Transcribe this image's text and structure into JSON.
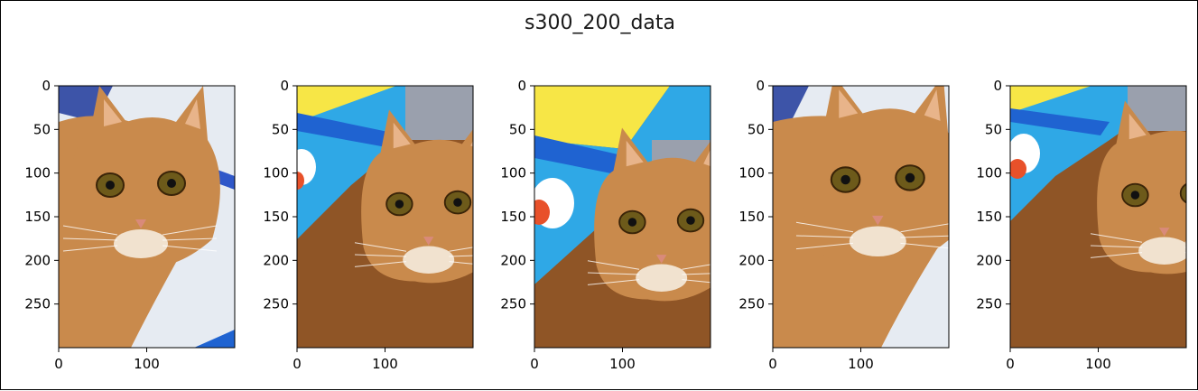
{
  "figure": {
    "title": "s300_200_data"
  },
  "chart_data": [
    {
      "type": "image",
      "panel": 1,
      "content": "cat photo crop",
      "xlim": [
        0,
        200
      ],
      "ylim": [
        300,
        0
      ],
      "xticks": [
        "0",
        "100"
      ],
      "yticks": [
        "0",
        "50",
        "100",
        "150",
        "200",
        "250"
      ]
    },
    {
      "type": "image",
      "panel": 2,
      "content": "cat photo crop",
      "xlim": [
        0,
        200
      ],
      "ylim": [
        300,
        0
      ],
      "xticks": [
        "0",
        "100"
      ],
      "yticks": [
        "0",
        "50",
        "100",
        "150",
        "200",
        "250"
      ]
    },
    {
      "type": "image",
      "panel": 3,
      "content": "cat photo crop",
      "xlim": [
        0,
        200
      ],
      "ylim": [
        300,
        0
      ],
      "xticks": [
        "0",
        "100"
      ],
      "yticks": [
        "0",
        "50",
        "100",
        "150",
        "200",
        "250"
      ]
    },
    {
      "type": "image",
      "panel": 4,
      "content": "cat photo crop",
      "xlim": [
        0,
        200
      ],
      "ylim": [
        300,
        0
      ],
      "xticks": [
        "0",
        "100"
      ],
      "yticks": [
        "0",
        "50",
        "100",
        "150",
        "200",
        "250"
      ]
    },
    {
      "type": "image",
      "panel": 5,
      "content": "cat photo crop",
      "xlim": [
        0,
        200
      ],
      "ylim": [
        300,
        0
      ],
      "xticks": [
        "0",
        "100"
      ],
      "yticks": [
        "0",
        "50",
        "100",
        "150",
        "200",
        "250"
      ]
    }
  ],
  "colors": {
    "cat_fur": "#c98a4c",
    "cat_fur_dark": "#8f5526",
    "bedding": "#e6ebf2",
    "blanket_blue": "#1f63d1",
    "blanket_yellow": "#f7e646",
    "blanket_cyan": "#2fa8e6",
    "eye": "#6d5a1a"
  }
}
